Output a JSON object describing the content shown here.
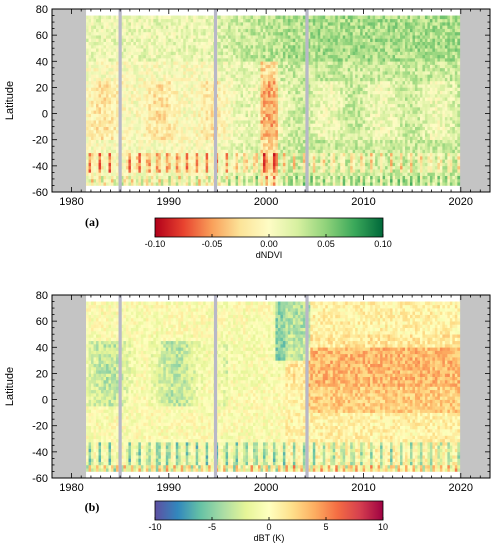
{
  "chart_data": [
    {
      "type": "heatmap",
      "panel_label": "(a)",
      "xlim": [
        1978,
        2023
      ],
      "ylim": [
        -60,
        80
      ],
      "xticks": [
        1980,
        1990,
        2000,
        2010,
        2020
      ],
      "yticks": [
        -60,
        -40,
        -20,
        0,
        20,
        40,
        60,
        80
      ],
      "ylabel": "Latitude",
      "data_start": 1981.5,
      "data_end": 2019.9,
      "data_lat_range": [
        -55,
        75
      ],
      "gaps": [
        1985,
        1994.8,
        2004.2
      ],
      "colorbar": {
        "label": "dNDVI",
        "range": [
          -0.1,
          0.1
        ],
        "ticks": [
          -0.1,
          -0.05,
          0.0,
          0.05,
          0.1
        ],
        "tick_labels": [
          "-0.10",
          "-0.05",
          "0.00",
          "0.05",
          "0.10"
        ],
        "colormap": "RdYlGn",
        "colors": [
          "#b2001a",
          "#e8432f",
          "#f9a05a",
          "#fce499",
          "#fefcc5",
          "#d7f0a0",
          "#8fd27a",
          "#3aa85a",
          "#00683a"
        ]
      }
    },
    {
      "type": "heatmap",
      "panel_label": "(b)",
      "xlim": [
        1978,
        2023
      ],
      "ylim": [
        -60,
        80
      ],
      "xticks": [
        1980,
        1990,
        2000,
        2010,
        2020
      ],
      "yticks": [
        -60,
        -40,
        -20,
        0,
        20,
        40,
        60,
        80
      ],
      "ylabel": "Latitude",
      "data_start": 1981.5,
      "data_end": 2019.9,
      "data_lat_range": [
        -55,
        75
      ],
      "gaps": [
        1985,
        1994.8,
        2004.2
      ],
      "colorbar": {
        "label": "dBT (K)",
        "range": [
          -10,
          10
        ],
        "ticks": [
          -10,
          -5,
          0,
          5,
          10
        ],
        "tick_labels": [
          "-10",
          "-5",
          "0",
          "5",
          "10"
        ],
        "colormap": "Spectral_r",
        "colors": [
          "#5e4fa2",
          "#3288bd",
          "#66c2a5",
          "#abdda4",
          "#e6f598",
          "#ffffbf",
          "#fee08b",
          "#fdae61",
          "#f46d43",
          "#d53e4f",
          "#9e0142"
        ]
      }
    }
  ]
}
